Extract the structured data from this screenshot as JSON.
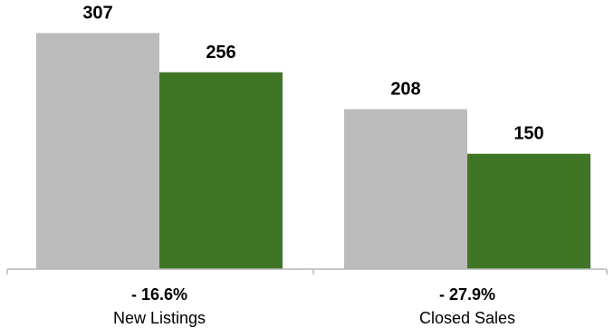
{
  "chart_data": {
    "type": "bar",
    "categories": [
      "New Listings",
      "Closed Sales"
    ],
    "series": [
      {
        "values": [
          307,
          208
        ]
      },
      {
        "values": [
          256,
          150
        ]
      }
    ],
    "change_labels": [
      "- 16.6%",
      "- 27.9%"
    ],
    "colors": [
      "#bbbbbb",
      "#3f7626"
    ],
    "ylim": [
      0,
      350
    ],
    "grid": false,
    "legend": "none"
  }
}
